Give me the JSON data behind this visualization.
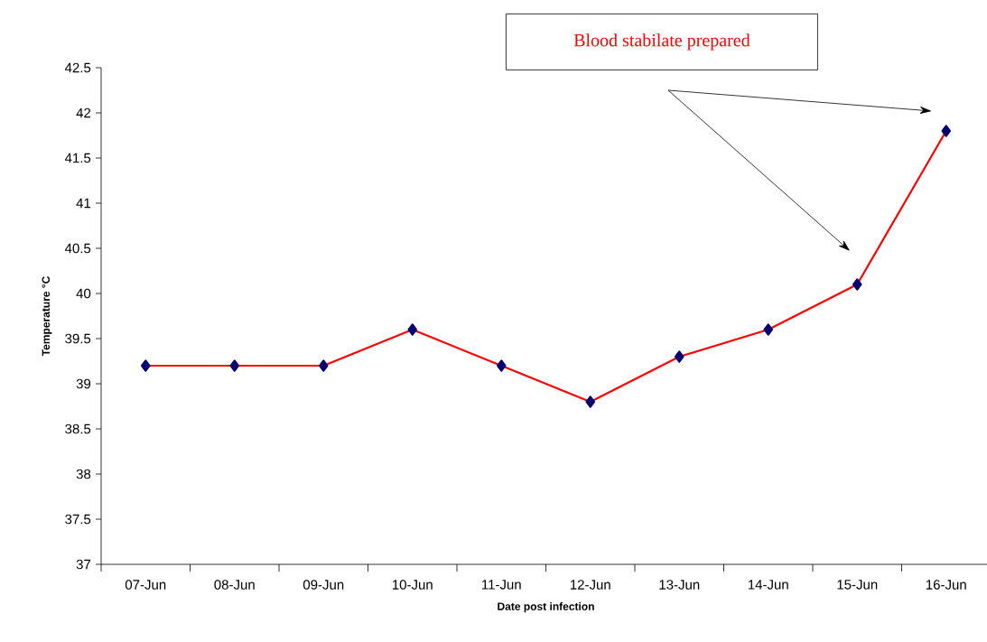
{
  "chart_data": {
    "type": "line",
    "xlabel": "Date post infection",
    "ylabel": "Temperature °C",
    "categories": [
      "07-Jun",
      "08-Jun",
      "09-Jun",
      "10-Jun",
      "11-Jun",
      "12-Jun",
      "13-Jun",
      "14-Jun",
      "15-Jun",
      "16-Jun"
    ],
    "series": [
      {
        "color": "#ff0000",
        "values": [
          39.2,
          39.2,
          39.2,
          39.6,
          39.2,
          38.8,
          39.3,
          39.6,
          40.1,
          41.8
        ]
      }
    ],
    "ylim": [
      37,
      42.5
    ],
    "yticks": [
      37,
      37.5,
      38,
      38.5,
      39,
      39.5,
      40,
      40.5,
      41,
      41.5,
      42,
      42.5
    ],
    "marker": "diamond",
    "line_style": "solid",
    "grid": false,
    "annotations": [
      "Blood stabilate prepared"
    ]
  }
}
